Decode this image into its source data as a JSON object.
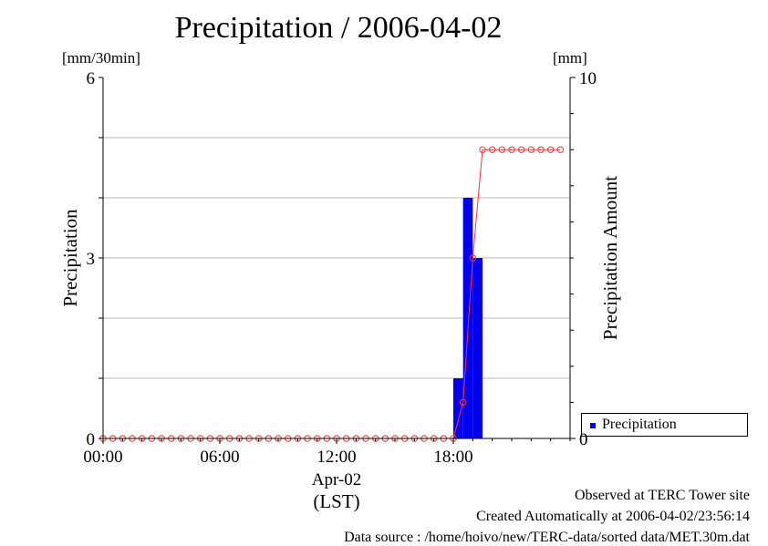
{
  "chart_data": {
    "type": "bar",
    "title": "Precipitation / 2006-04-02",
    "left_axis": {
      "label": "Precipitation",
      "unit": "[mm/30min]",
      "ylim": [
        0,
        6
      ],
      "ticks": [
        "0",
        "3",
        "6"
      ]
    },
    "right_axis": {
      "label": "Precipitation Amount",
      "unit": "[mm]",
      "ylim": [
        0,
        10
      ],
      "ticks": [
        "0",
        "10"
      ]
    },
    "x_axis": {
      "range_hours": [
        0,
        24
      ],
      "tick_hours": [
        0,
        6,
        12,
        18
      ],
      "tick_labels": [
        "00:00",
        "06:00",
        "12:00",
        "18:00"
      ],
      "date_label": "Apr-02",
      "tz_label": "(LST)"
    },
    "grid": true,
    "legend": {
      "position": "bottom-right",
      "entries": [
        "Precipitation"
      ]
    },
    "series": [
      {
        "name": "Precipitation",
        "kind": "bar",
        "color": "#0000ee",
        "x_hours": [
          18,
          18.5,
          19
        ],
        "values": [
          1.0,
          4.0,
          3.0
        ]
      },
      {
        "kind": "line",
        "color": "#ff3333",
        "marker": "circle",
        "x_start_hour": 0,
        "step_hours": 0.5,
        "values": [
          0,
          0,
          0,
          0,
          0,
          0,
          0,
          0,
          0,
          0,
          0,
          0,
          0,
          0,
          0,
          0,
          0,
          0,
          0,
          0,
          0,
          0,
          0,
          0,
          0,
          0,
          0,
          0,
          0,
          0,
          0,
          0,
          0,
          0,
          0,
          0,
          0,
          1.0,
          5.0,
          8.0,
          8.0,
          8.0,
          8.0,
          8.0,
          8.0,
          8.0,
          8.0,
          8.0
        ]
      }
    ]
  },
  "footer": {
    "line1": "Observed at TERC Tower site",
    "line2": "Created Automatically at 2006-04-02/23:56:14",
    "line3": "Data source : /home/hoivo/new/TERC-data/sorted  data/MET.30m.dat"
  }
}
